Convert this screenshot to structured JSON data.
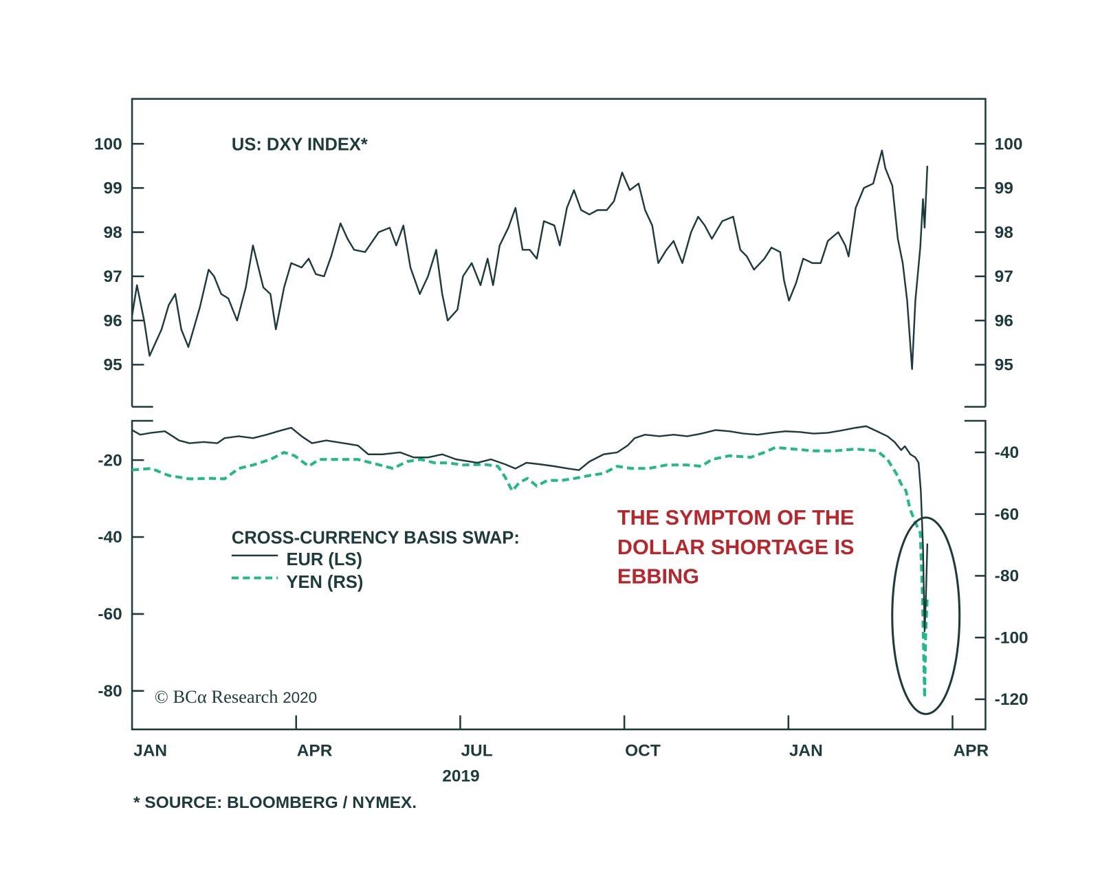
{
  "chart_data": [
    {
      "type": "line",
      "title": "US: DXY INDEX*",
      "x_unit": "months since Jan 2019",
      "ylim": [
        94.1,
        101.0
      ],
      "yticks": [
        95,
        96,
        97,
        98,
        99,
        100
      ],
      "series": [
        {
          "name": "DXY",
          "color": "#1e3b3b",
          "axis": "both",
          "x": [
            0,
            0.09,
            0.22,
            0.32,
            0.54,
            0.67,
            0.79,
            0.9,
            1.03,
            1.24,
            1.4,
            1.5,
            1.63,
            1.76,
            1.92,
            2.08,
            2.21,
            2.4,
            2.53,
            2.63,
            2.78,
            2.91,
            3.1,
            3.23,
            3.36,
            3.51,
            3.64,
            3.81,
            3.94,
            4.06,
            4.26,
            4.51,
            4.71,
            4.83,
            4.96,
            5.09,
            5.26,
            5.41,
            5.56,
            5.67,
            5.77,
            5.95,
            6.05,
            6.21,
            6.37,
            6.5,
            6.6,
            6.72,
            6.88,
            7.01,
            7.14,
            7.27,
            7.4,
            7.53,
            7.72,
            7.82,
            7.95,
            8.08,
            8.21,
            8.36,
            8.51,
            8.68,
            8.81,
            8.96,
            9.1,
            9.26,
            9.38,
            9.51,
            9.62,
            9.77,
            9.9,
            10.06,
            10.22,
            10.35,
            10.47,
            10.6,
            10.79,
            10.99,
            11.12,
            11.24,
            11.37,
            11.56,
            11.69,
            11.85,
            11.92,
            12.01,
            12.14,
            12.27,
            12.44,
            12.59,
            12.72,
            12.91,
            13.04,
            13.1,
            13.23,
            13.38,
            13.55,
            13.71,
            13.77,
            13.9,
            14.0,
            14.09,
            14.17,
            14.26,
            14.32,
            14.41,
            14.46,
            14.49,
            14.54
          ],
          "y": [
            96.1,
            96.8,
            96.0,
            95.2,
            95.8,
            96.35,
            96.6,
            95.8,
            95.4,
            96.3,
            97.15,
            97.0,
            96.6,
            96.5,
            96.0,
            96.75,
            97.7,
            96.75,
            96.6,
            95.8,
            96.75,
            97.3,
            97.2,
            97.4,
            97.05,
            97.0,
            97.45,
            98.2,
            97.85,
            97.6,
            97.55,
            98.0,
            98.1,
            97.7,
            98.15,
            97.2,
            96.6,
            97.0,
            97.6,
            96.6,
            96.0,
            96.25,
            97.0,
            97.3,
            96.8,
            97.4,
            96.8,
            97.7,
            98.1,
            98.55,
            97.6,
            97.6,
            97.4,
            98.25,
            98.15,
            97.7,
            98.55,
            98.95,
            98.5,
            98.4,
            98.5,
            98.5,
            98.7,
            99.35,
            98.95,
            99.1,
            98.5,
            98.15,
            97.3,
            97.6,
            97.8,
            97.3,
            98.0,
            98.35,
            98.15,
            97.85,
            98.25,
            98.35,
            97.6,
            97.45,
            97.15,
            97.4,
            97.65,
            97.55,
            96.9,
            96.45,
            96.85,
            97.4,
            97.3,
            97.3,
            97.8,
            98.0,
            97.7,
            97.45,
            98.55,
            99.0,
            99.1,
            99.85,
            99.45,
            99.05,
            97.85,
            97.3,
            96.45,
            94.9,
            96.45,
            97.65,
            98.75,
            98.1,
            99.5
          ]
        }
      ]
    },
    {
      "type": "line",
      "title": "CROSS-CURRENCY BASIS SWAP:",
      "x_unit": "months since Jan 2019",
      "xticks": [
        "JAN",
        "APR",
        "JUL",
        "OCT",
        "JAN",
        "APR"
      ],
      "xtick_values": [
        0,
        3,
        6,
        9,
        12,
        15
      ],
      "year_label": "2019",
      "left_axis": {
        "ylim": [
          -88,
          -11
        ],
        "yticks": [
          -20,
          -40,
          -60,
          -80
        ]
      },
      "right_axis": {
        "ylim": [
          -130,
          -33
        ],
        "yticks": [
          -40,
          -60,
          -80,
          -100,
          -120
        ]
      },
      "legend": [
        "EUR (LS)",
        "YEN (RS)"
      ],
      "series": [
        {
          "name": "EUR (LS)",
          "color": "#1e3b3b",
          "style": "solid",
          "axis": "left",
          "x": [
            0,
            0.15,
            0.35,
            0.6,
            0.86,
            1.05,
            1.31,
            1.56,
            1.69,
            1.95,
            2.21,
            2.46,
            2.72,
            2.91,
            3.1,
            3.29,
            3.55,
            3.87,
            4.13,
            4.32,
            4.58,
            4.9,
            5.15,
            5.41,
            5.67,
            5.92,
            6.31,
            6.56,
            6.82,
            7.01,
            7.21,
            7.46,
            7.72,
            7.97,
            8.17,
            8.36,
            8.62,
            8.87,
            9.06,
            9.19,
            9.38,
            9.64,
            9.9,
            10.15,
            10.41,
            10.67,
            10.92,
            11.18,
            11.44,
            11.69,
            11.95,
            12.21,
            12.46,
            12.72,
            12.97,
            13.23,
            13.42,
            13.62,
            13.81,
            13.94,
            14.06,
            14.13,
            14.23,
            14.32,
            14.38,
            14.42,
            14.46,
            14.49,
            14.51,
            14.54
          ],
          "y": [
            -12.2,
            -13.4,
            -12.9,
            -12.5,
            -14.9,
            -15.6,
            -15.3,
            -15.6,
            -14.3,
            -13.8,
            -14.3,
            -13.4,
            -12.3,
            -11.6,
            -13.8,
            -15.6,
            -14.9,
            -15.6,
            -16.2,
            -18.5,
            -18.5,
            -18.0,
            -19.3,
            -19.3,
            -18.5,
            -19.8,
            -20.7,
            -19.8,
            -21.1,
            -22.2,
            -20.7,
            -21.1,
            -21.6,
            -22.2,
            -22.6,
            -20.4,
            -18.5,
            -18.0,
            -16.2,
            -14.3,
            -13.4,
            -13.8,
            -13.4,
            -13.8,
            -13.1,
            -12.2,
            -12.5,
            -13.1,
            -13.4,
            -12.9,
            -12.5,
            -12.7,
            -13.1,
            -12.9,
            -12.3,
            -11.6,
            -11.2,
            -12.5,
            -13.8,
            -15.3,
            -17.4,
            -16.4,
            -18.5,
            -19.3,
            -20.7,
            -28.0,
            -42.6,
            -64.5,
            -57.2,
            -41.7
          ]
        },
        {
          "name": "YEN (RS)",
          "color": "#22b98a",
          "style": "dashed",
          "axis": "right",
          "x": [
            0,
            0.35,
            0.67,
            1.05,
            1.44,
            1.69,
            1.95,
            2.21,
            2.53,
            2.78,
            2.97,
            3.23,
            3.42,
            3.74,
            4.13,
            4.38,
            4.77,
            5.03,
            5.28,
            5.54,
            5.79,
            6.05,
            6.44,
            6.69,
            6.82,
            6.95,
            7.08,
            7.23,
            7.4,
            7.59,
            7.85,
            8.1,
            8.36,
            8.62,
            8.87,
            9.13,
            9.45,
            9.77,
            10.15,
            10.41,
            10.6,
            10.92,
            11.31,
            11.56,
            11.76,
            12.08,
            12.46,
            12.85,
            13.23,
            13.62,
            13.81,
            13.97,
            14.06,
            14.15,
            14.22,
            14.32,
            14.41,
            14.45,
            14.49,
            14.51,
            14.54
          ],
          "y": [
            -45.7,
            -45.2,
            -47.5,
            -48.6,
            -48.4,
            -48.6,
            -45.2,
            -44.1,
            -42.3,
            -40.0,
            -41.1,
            -44.5,
            -42.3,
            -42.3,
            -42.3,
            -43.4,
            -45.2,
            -42.95,
            -42.3,
            -43.4,
            -43.4,
            -44.1,
            -43.9,
            -44.5,
            -48.0,
            -52.5,
            -49.8,
            -48.4,
            -50.9,
            -49.1,
            -49.1,
            -48.4,
            -47.5,
            -46.8,
            -44.5,
            -45.2,
            -45.2,
            -44.1,
            -44.1,
            -44.5,
            -42.3,
            -41.1,
            -41.6,
            -40.0,
            -38.4,
            -38.9,
            -39.5,
            -39.5,
            -38.9,
            -39.5,
            -42.3,
            -46.8,
            -50.2,
            -52.5,
            -58.2,
            -62.7,
            -66.1,
            -86.6,
            -119.5,
            -98.0,
            -86.6
          ]
        }
      ]
    }
  ],
  "annotation": {
    "lines": [
      "THE SYMPTOM OF THE",
      "DOLLAR SHORTAGE IS",
      "EBBING"
    ],
    "color": "#b8262b"
  },
  "copyright": {
    "symbol": "©",
    "brand": "BCα Research",
    "year": "2020"
  },
  "footnote": "* SOURCE: BLOOMBERG / NYMEX."
}
